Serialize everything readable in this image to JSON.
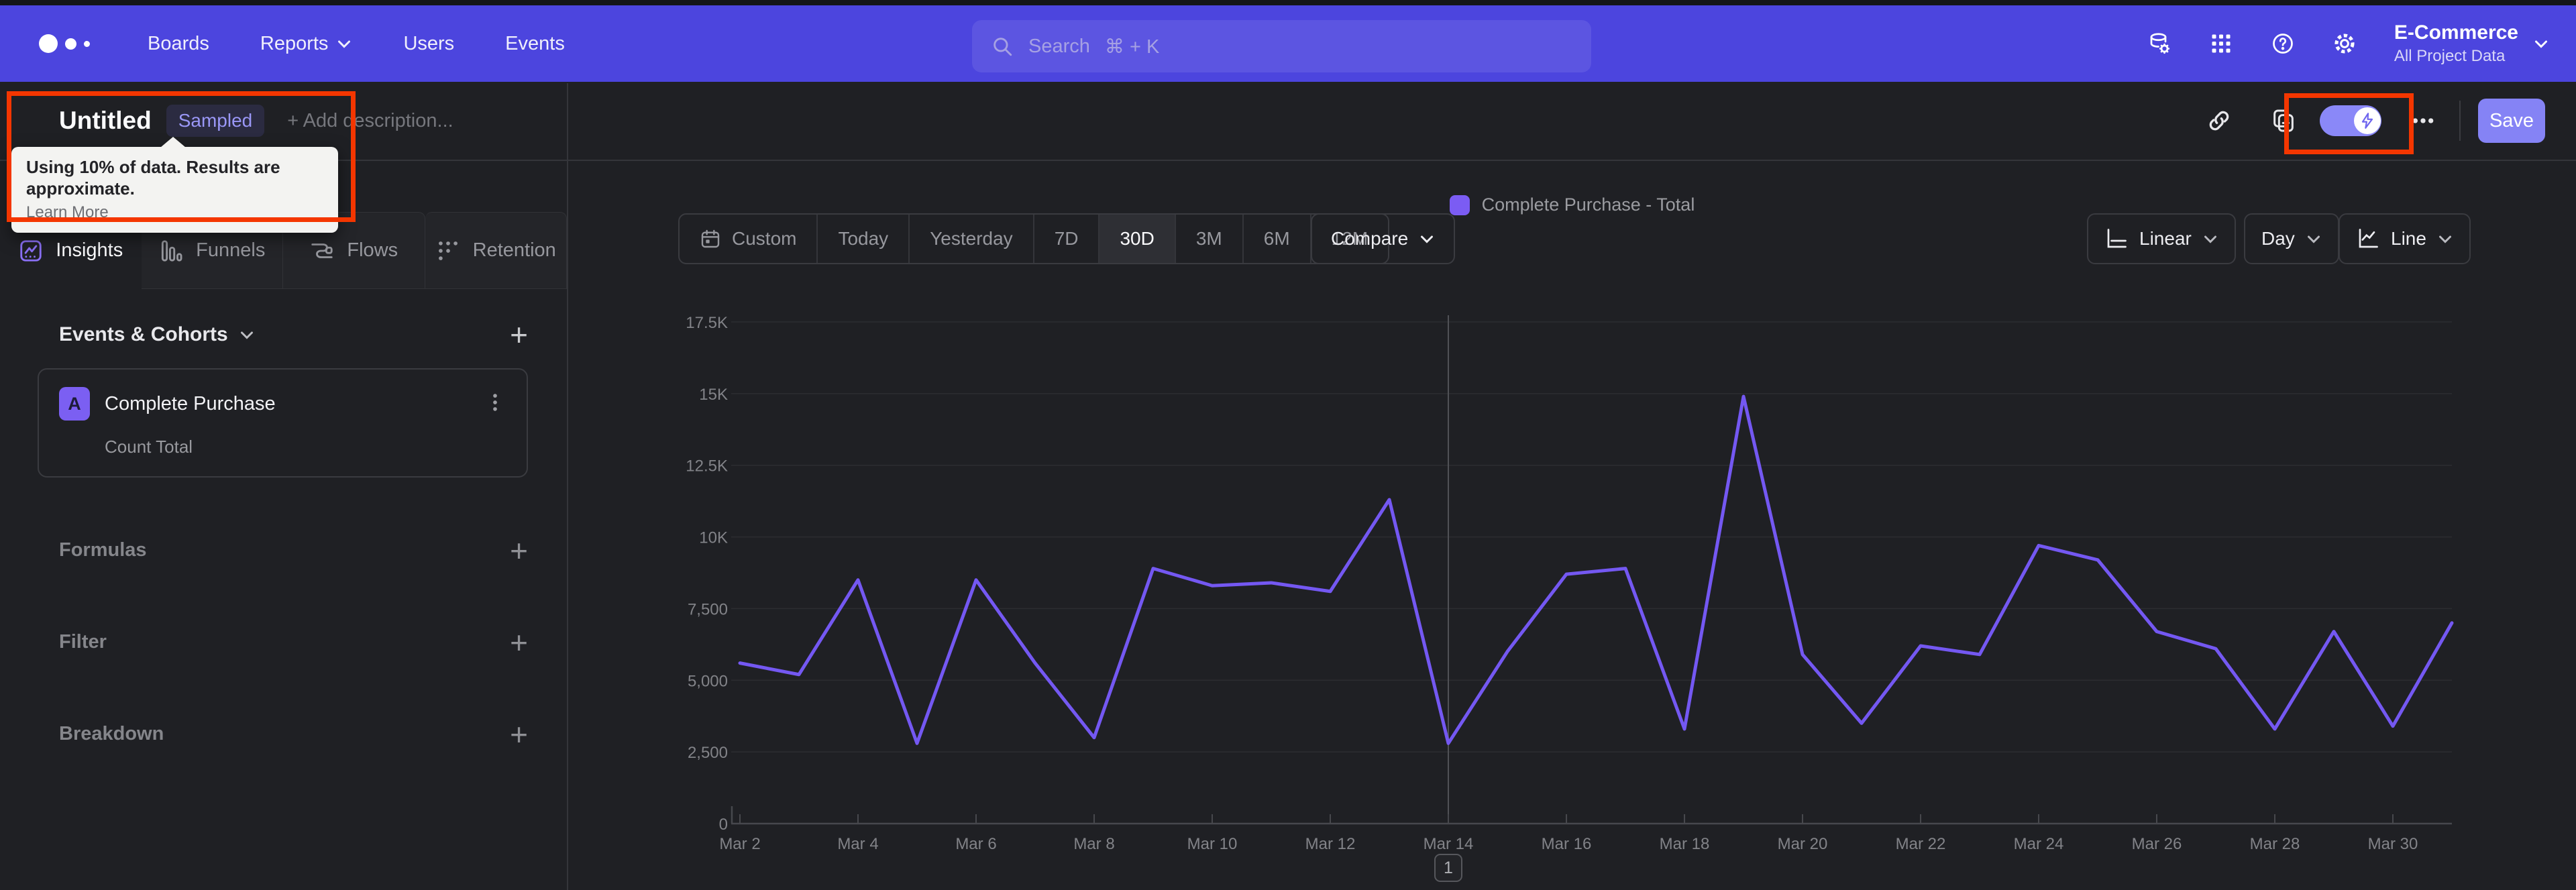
{
  "topnav": {
    "nav_items": [
      "Boards",
      "Reports",
      "Users",
      "Events"
    ],
    "search": {
      "placeholder": "Search",
      "shortcut": "⌘ + K"
    },
    "project": {
      "name": "E-Commerce",
      "scope": "All Project Data"
    }
  },
  "header": {
    "title": "Untitled",
    "badge": "Sampled",
    "add_description": "+ Add description...",
    "save_label": "Save",
    "tooltip": {
      "text": "Using 10% of data. Results are approximate.",
      "link": "Learn More"
    }
  },
  "sidebar": {
    "tabs": [
      {
        "label": "Insights",
        "active": true
      },
      {
        "label": "Funnels",
        "active": false
      },
      {
        "label": "Flows",
        "active": false
      },
      {
        "label": "Retention",
        "active": false
      }
    ],
    "events_section_title": "Events & Cohorts",
    "event": {
      "letter": "A",
      "name": "Complete Purchase",
      "metric": "Count Total"
    },
    "sections": [
      "Formulas",
      "Filter",
      "Breakdown"
    ]
  },
  "controls": {
    "ranges": [
      "Custom",
      "Today",
      "Yesterday",
      "7D",
      "30D",
      "3M",
      "6M",
      "12M"
    ],
    "active_range": "30D",
    "compare_label": "Compare",
    "scale_label": "Linear",
    "granularity_label": "Day",
    "chart_type_label": "Line"
  },
  "chart_data": {
    "type": "line",
    "series_label": "Complete Purchase - Total",
    "dates": [
      "Mar 2",
      "Mar 3",
      "Mar 4",
      "Mar 5",
      "Mar 6",
      "Mar 7",
      "Mar 8",
      "Mar 9",
      "Mar 10",
      "Mar 11",
      "Mar 12",
      "Mar 13",
      "Mar 14",
      "Mar 15",
      "Mar 16",
      "Mar 17",
      "Mar 18",
      "Mar 19",
      "Mar 20",
      "Mar 21",
      "Mar 22",
      "Mar 23",
      "Mar 24",
      "Mar 25",
      "Mar 26",
      "Mar 27",
      "Mar 28",
      "Mar 29",
      "Mar 30",
      "Mar 31"
    ],
    "values": [
      5600,
      5200,
      8500,
      2800,
      8500,
      5600,
      3000,
      8900,
      8300,
      8400,
      8100,
      11300,
      2800,
      6000,
      8700,
      8900,
      3300,
      14900,
      5900,
      3500,
      6200,
      5900,
      9700,
      9200,
      6700,
      6100,
      3300,
      6700,
      3400,
      7000
    ],
    "tick_step": 2,
    "ylim": [
      0,
      17500
    ],
    "y_ticks": [
      {
        "value": 0,
        "label": "0"
      },
      {
        "value": 2500,
        "label": "2,500"
      },
      {
        "value": 5000,
        "label": "5,000"
      },
      {
        "value": 7500,
        "label": "7,500"
      },
      {
        "value": 10000,
        "label": "10K"
      },
      {
        "value": 12500,
        "label": "12.5K"
      },
      {
        "value": 15000,
        "label": "15K"
      },
      {
        "value": 17500,
        "label": "17.5K"
      }
    ],
    "grid": true,
    "legend_position": "top-center",
    "line_color": "#7458f2",
    "annotation": {
      "label": "1",
      "date": "Mar 14",
      "index": 12
    }
  },
  "colors": {
    "nav_background": "#4c45de",
    "page_background": "#1f2024",
    "accent_purple": "#7458f2",
    "save_button": "#8583f5",
    "annotation_red": "#f43600",
    "badge_text": "#9a97f6"
  }
}
